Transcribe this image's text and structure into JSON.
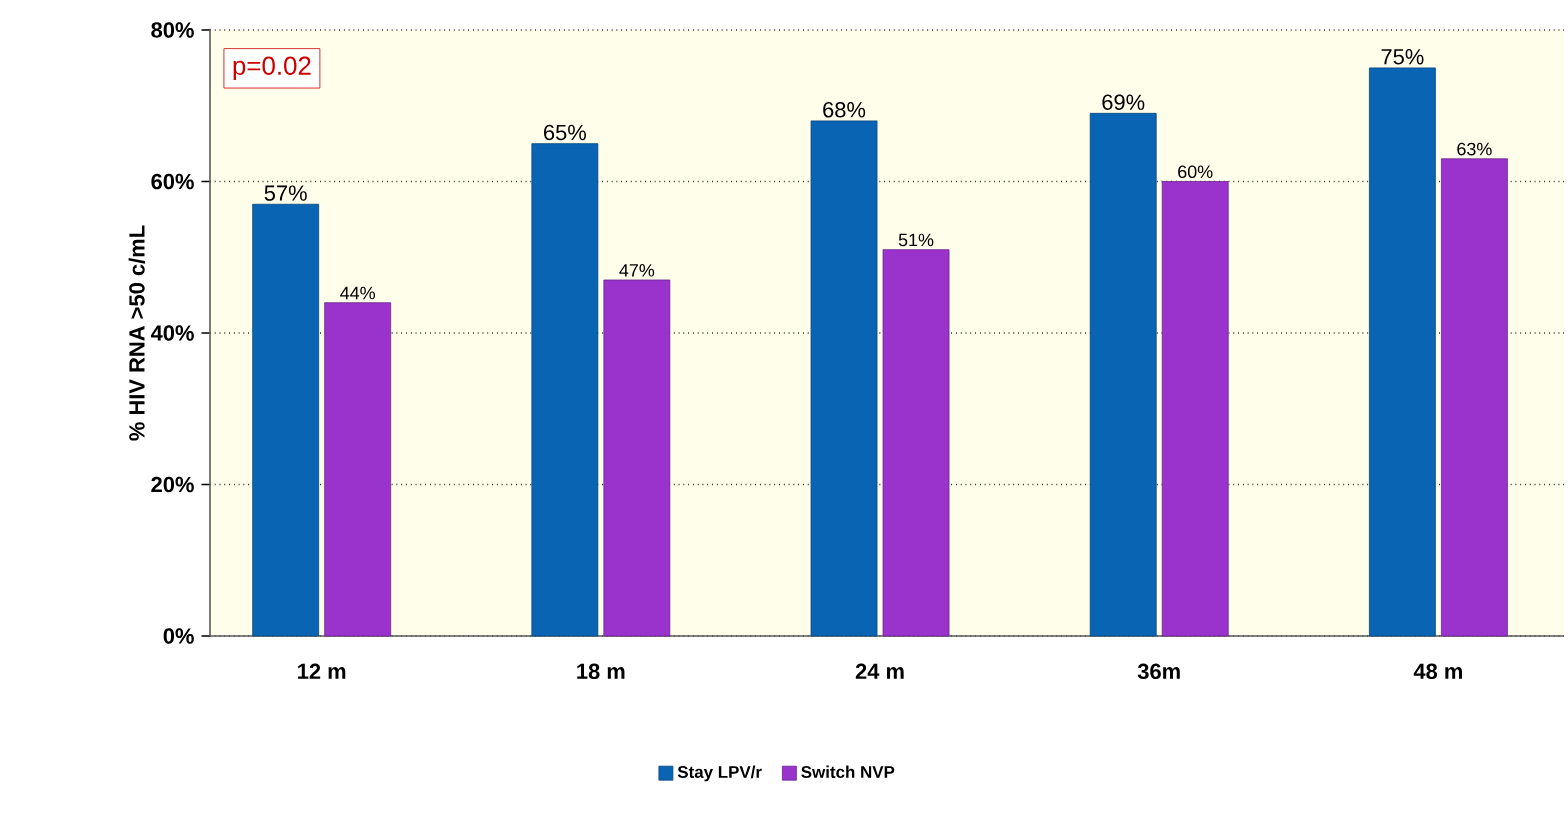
{
  "chart_data": {
    "type": "bar",
    "ylabel": "% HIV RNA >50 c/mL",
    "categories": [
      "12 m",
      "18 m",
      "24 m",
      "36m",
      "48 m"
    ],
    "series": [
      {
        "name": "Stay LPV/r",
        "color": "#0a64b4",
        "values": [
          57,
          65,
          68,
          69,
          75
        ],
        "value_labels": [
          "57%",
          "65%",
          "68%",
          "69%",
          "75%"
        ]
      },
      {
        "name": "Switch NVP",
        "color": "#9933cc",
        "values": [
          44,
          47,
          51,
          60,
          63
        ],
        "value_labels": [
          "44%",
          "47%",
          "51%",
          "60%",
          "63%"
        ]
      }
    ],
    "ylim": [
      0,
      80
    ],
    "yticks": [
      {
        "value": 0,
        "label": "0%"
      },
      {
        "value": 20,
        "label": "20%"
      },
      {
        "value": 40,
        "label": "40%"
      },
      {
        "value": 60,
        "label": "60%"
      },
      {
        "value": 80,
        "label": "80%"
      }
    ],
    "grid": "y",
    "legend": "bottom",
    "annotations": [
      "p=0.02"
    ]
  }
}
